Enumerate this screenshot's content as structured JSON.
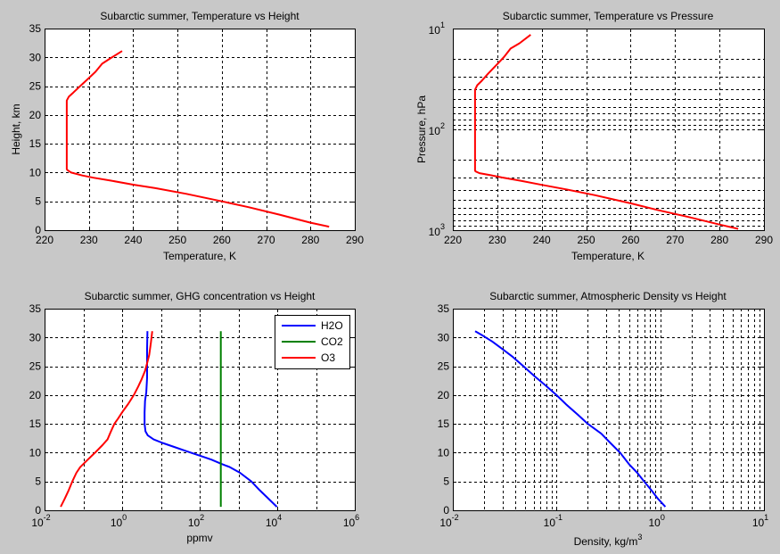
{
  "chart_data": [
    {
      "type": "line",
      "title": "Subarctic summer, Temperature vs Height",
      "xlabel": "Temperature, K",
      "ylabel": "Height, km",
      "xscale": "linear",
      "yscale": "linear",
      "xlim": [
        220,
        290
      ],
      "ylim": [
        0,
        35
      ],
      "xticks": [
        220,
        230,
        240,
        250,
        260,
        270,
        280,
        290
      ],
      "xtick_labels": [
        "220",
        "230",
        "240",
        "250",
        "260",
        "270",
        "280",
        "290"
      ],
      "yticks": [
        0,
        5,
        10,
        15,
        20,
        25,
        30,
        35
      ],
      "ytick_labels": [
        "0",
        "5",
        "10",
        "15",
        "20",
        "25",
        "30",
        "35"
      ],
      "grid": true,
      "series": [
        {
          "name": "Temperature",
          "color": "#ff0000",
          "x": [
            284.2,
            280,
            273,
            266,
            260,
            252,
            245,
            240,
            235,
            231,
            228.5,
            226,
            225.2,
            225,
            225,
            225,
            225,
            225.5,
            226.5,
            228,
            230,
            231.5,
            233,
            235,
            237.5
          ],
          "y": [
            0.6,
            1.3,
            2.7,
            4.0,
            5.0,
            6.3,
            7.3,
            7.9,
            8.6,
            9.1,
            9.5,
            10.0,
            10.4,
            10.6,
            15,
            20,
            22.5,
            23.2,
            23.9,
            25.0,
            26.4,
            27.5,
            28.9,
            29.9,
            31.1
          ]
        }
      ]
    },
    {
      "type": "line",
      "title": "Subarctic summer, Temperature vs Pressure",
      "xlabel": "Temperature, K",
      "ylabel": "Pressure, hPa",
      "xscale": "linear",
      "yscale": "log",
      "yreverse": true,
      "xlim": [
        220,
        290
      ],
      "ylim": [
        10,
        1000
      ],
      "xticks": [
        220,
        230,
        240,
        250,
        260,
        270,
        280,
        290
      ],
      "xtick_labels": [
        "220",
        "230",
        "240",
        "250",
        "260",
        "270",
        "280",
        "290"
      ],
      "yticks": [
        10,
        100,
        1000
      ],
      "ytick_labels": [
        {
          "base": "10",
          "exp": "1"
        },
        {
          "base": "10",
          "exp": "2"
        },
        {
          "base": "10",
          "exp": "3"
        }
      ],
      "grid": true,
      "series": [
        {
          "name": "Temperature",
          "color": "#ff0000",
          "x": [
            284.2,
            280,
            273,
            266,
            260,
            252,
            245,
            240,
            235,
            231,
            228.5,
            226,
            225.2,
            225,
            225,
            225,
            225,
            225.5,
            226.5,
            228,
            230,
            231.5,
            233,
            235,
            237.5
          ],
          "y": [
            970,
            880,
            740,
            630,
            541,
            450,
            390,
            355,
            322,
            300,
            285,
            272,
            262,
            258,
            125,
            58.9,
            40.5,
            36.5,
            33.0,
            27.8,
            22.5,
            19.2,
            15.8,
            14.0,
            11.5
          ]
        }
      ]
    },
    {
      "type": "line",
      "title": "Subarctic summer, GHG concentration vs Height",
      "xlabel": "ppmv",
      "ylabel": "",
      "xscale": "log",
      "yscale": "linear",
      "xlim": [
        0.01,
        1000000
      ],
      "ylim": [
        0,
        35
      ],
      "xticks": [
        0.01,
        1,
        100,
        10000,
        1000000
      ],
      "xtick_labels": [
        {
          "base": "10",
          "exp": "-2"
        },
        {
          "base": "10",
          "exp": "0"
        },
        {
          "base": "10",
          "exp": "2"
        },
        {
          "base": "10",
          "exp": "4"
        },
        {
          "base": "10",
          "exp": "6"
        }
      ],
      "yticks": [
        0,
        5,
        10,
        15,
        20,
        25,
        30,
        35
      ],
      "ytick_labels": [
        "0",
        "5",
        "10",
        "15",
        "20",
        "25",
        "30",
        "35"
      ],
      "grid": true,
      "legend": {
        "position": "top-right",
        "entries": [
          "H2O",
          "CO2",
          "O3"
        ]
      },
      "series": [
        {
          "name": "H2O",
          "color": "#0000ff",
          "x": [
            9800,
            6000,
            3500,
            2150,
            1100,
            600,
            350,
            200,
            110,
            48,
            22,
            11,
            6.5,
            4.6,
            4.0,
            3.8,
            3.8,
            3.9,
            4.2,
            4.4,
            4.4,
            4.4,
            4.5
          ],
          "y": [
            0.6,
            2.0,
            3.5,
            5.0,
            6.5,
            7.5,
            8.1,
            8.8,
            9.4,
            10.2,
            11.0,
            11.7,
            12.3,
            13.0,
            13.7,
            15.0,
            17.0,
            19.0,
            20.5,
            23.0,
            25.0,
            28.0,
            31.1
          ]
        },
        {
          "name": "CO2",
          "color": "#008000",
          "x": [
            350,
            350
          ],
          "y": [
            0.6,
            31.1
          ]
        },
        {
          "name": "O3",
          "color": "#ff0000",
          "x": [
            0.026,
            0.033,
            0.042,
            0.052,
            0.066,
            0.083,
            0.13,
            0.2,
            0.31,
            0.42,
            0.5,
            0.63,
            0.8,
            1.0,
            1.45,
            2.0,
            2.6,
            3.2,
            3.9,
            4.4,
            5.0,
            5.5,
            6.0
          ],
          "y": [
            0.6,
            2.0,
            3.5,
            5.0,
            6.5,
            7.5,
            8.8,
            10.0,
            11.3,
            12.3,
            13.5,
            15.0,
            16.0,
            17.0,
            18.5,
            20.0,
            21.5,
            22.8,
            24.2,
            25.5,
            27.0,
            29.0,
            31.1
          ]
        }
      ]
    },
    {
      "type": "line",
      "title": "Subarctic summer, Atmospheric Density vs Height",
      "xlabel": "Density, kg/m",
      "xlabel_sup": "3",
      "ylabel": "",
      "xscale": "log",
      "yscale": "linear",
      "xlim": [
        0.01,
        10
      ],
      "ylim": [
        0,
        35
      ],
      "xticks": [
        0.01,
        0.1,
        1,
        10
      ],
      "xtick_labels": [
        {
          "base": "10",
          "exp": "-2"
        },
        {
          "base": "10",
          "exp": "-1"
        },
        {
          "base": "10",
          "exp": "0"
        },
        {
          "base": "10",
          "exp": "1"
        }
      ],
      "yticks": [
        0,
        5,
        10,
        15,
        20,
        25,
        30,
        35
      ],
      "ytick_labels": [
        "0",
        "5",
        "10",
        "15",
        "20",
        "25",
        "30",
        "35"
      ],
      "grid": true,
      "series": [
        {
          "name": "Density",
          "color": "#0000ff",
          "x": [
            1.12,
            0.95,
            0.82,
            0.7,
            0.6,
            0.5,
            0.41,
            0.33,
            0.27,
            0.2,
            0.16,
            0.125,
            0.1,
            0.078,
            0.061,
            0.048,
            0.038,
            0.03,
            0.024,
            0.0195,
            0.0164
          ],
          "y": [
            0.6,
            2.0,
            3.5,
            5.0,
            6.5,
            8.0,
            10.0,
            11.7,
            13.3,
            15.0,
            16.6,
            18.3,
            20.0,
            21.7,
            23.3,
            25.0,
            26.6,
            28.0,
            29.3,
            30.3,
            31.1
          ]
        }
      ]
    }
  ]
}
